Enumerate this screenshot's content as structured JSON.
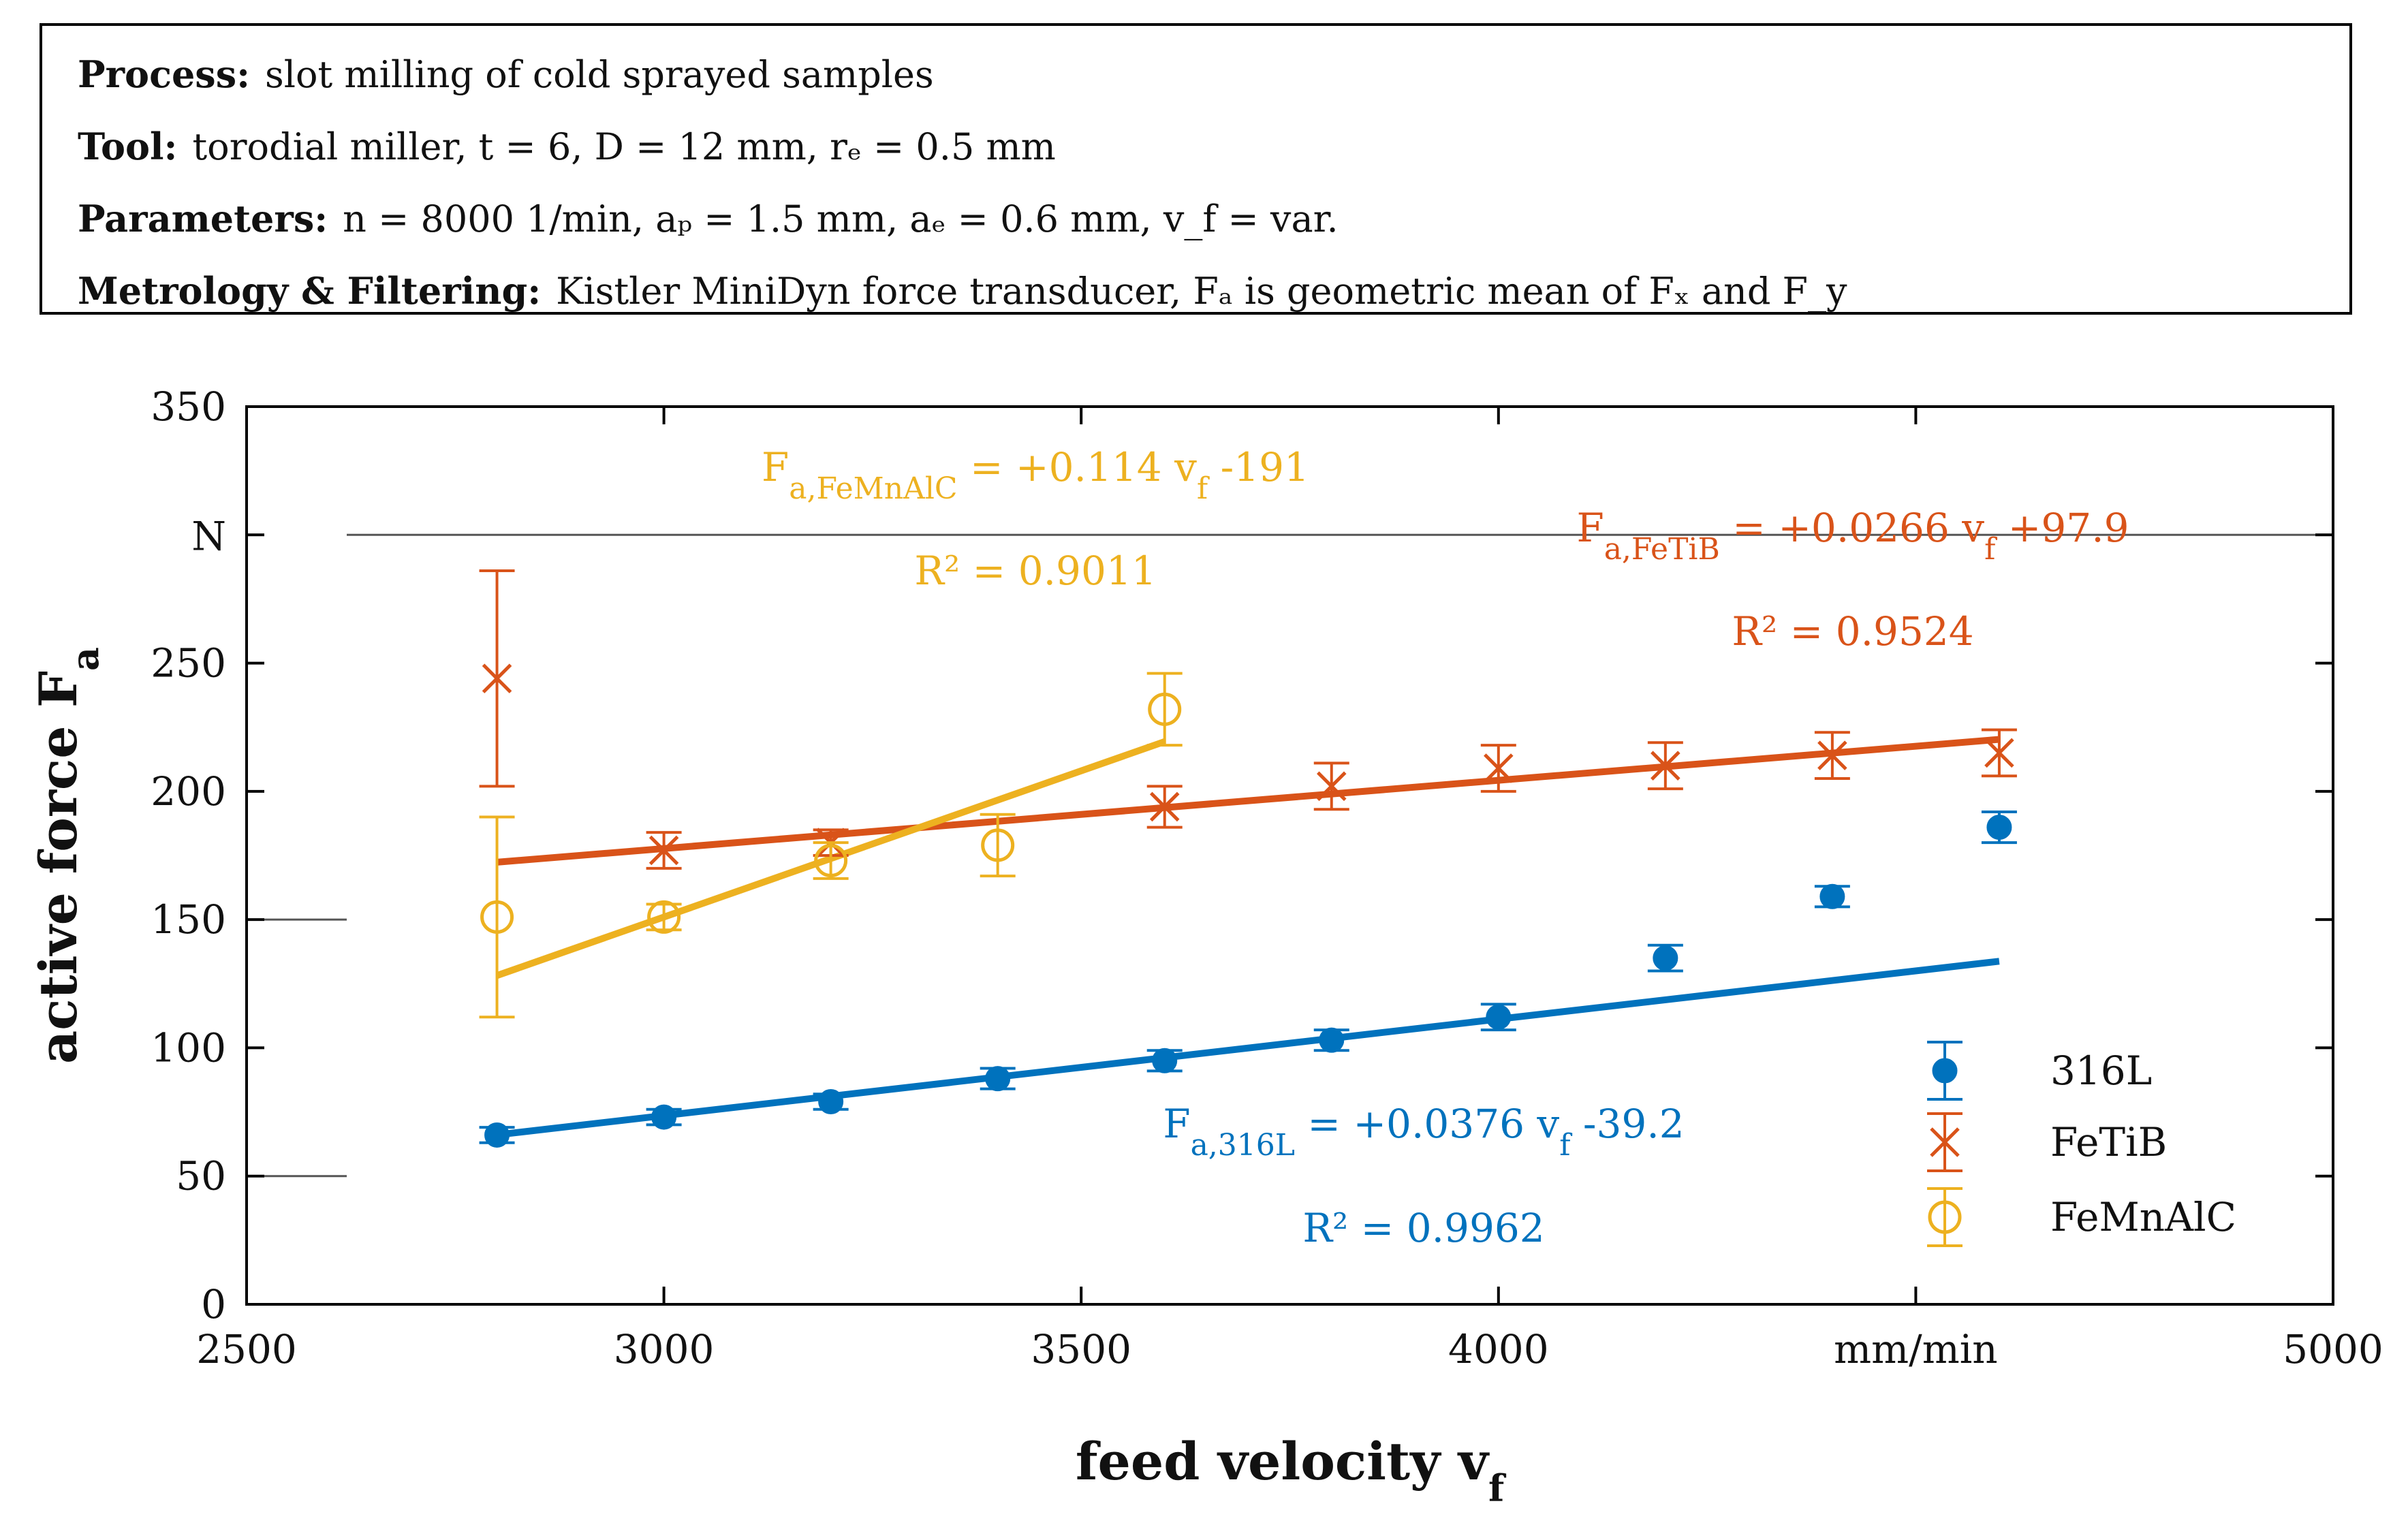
{
  "info_box": {
    "lines": [
      {
        "label": "Process:",
        "text": "slot milling of cold sprayed samples"
      },
      {
        "label": "Tool:",
        "text": "torodial miller, t = 6, D = 12 mm, rₑ = 0.5 mm"
      },
      {
        "label": "Parameters:",
        "text": "n = 8000 1/min, aₚ = 1.5 mm, aₑ = 0.6 mm, v_f = var."
      },
      {
        "label": "Metrology & Filtering:",
        "text": "Kistler MiniDyn force transducer, Fₐ is geometric mean of Fₓ and F_y"
      }
    ]
  },
  "colors": {
    "s316L": "#0072bd",
    "FeTiB": "#d95319",
    "FeMnAlC": "#edb120",
    "axis": "#000000",
    "grid": "#000000"
  },
  "chart_data": {
    "type": "scatter",
    "xlabel": "feed velocity v_f",
    "ylabel": "active force F_a",
    "x_unit": "mm/min",
    "y_unit": "N",
    "xlim": [
      2500,
      5000
    ],
    "ylim": [
      0,
      350
    ],
    "x_ticks": [
      2500,
      3000,
      3500,
      4000,
      5000
    ],
    "y_ticks": [
      0,
      50,
      100,
      150,
      200,
      250,
      350
    ],
    "legend_position": "bottom-right",
    "series": [
      {
        "name": "316L",
        "marker": "filled-circle",
        "color": "#0072bd",
        "x": [
          2800,
          3000,
          3200,
          3400,
          3600,
          3800,
          4000,
          4200,
          4400,
          4600
        ],
        "y": [
          66,
          73,
          79,
          88,
          95,
          103,
          112,
          135,
          159,
          186
        ],
        "err": [
          3,
          3,
          3,
          4,
          4,
          4,
          5,
          5,
          4,
          6
        ],
        "fit": {
          "x": [
            2800,
            4600
          ],
          "slope": 0.0376,
          "intercept": -39.2
        },
        "equation": "F_a,316L = +0.0376 v_f -39.2",
        "r2": "R² = 0.9962"
      },
      {
        "name": "FeTiB",
        "marker": "x",
        "color": "#d95319",
        "x": [
          2800,
          3000,
          3200,
          3600,
          3800,
          4000,
          4200,
          4400,
          4600
        ],
        "y": [
          244,
          177,
          180,
          194,
          202,
          209,
          210,
          214,
          215
        ],
        "err": [
          42,
          7,
          5,
          8,
          9,
          9,
          9,
          9,
          9
        ],
        "fit": {
          "x": [
            2800,
            4600
          ],
          "slope": 0.0266,
          "intercept": 97.9
        },
        "equation": "F_a,FeTiB = +0.0266 v_f +97.9",
        "r2": "R² = 0.9524"
      },
      {
        "name": "FeMnAlC",
        "marker": "open-circle",
        "color": "#edb120",
        "x": [
          2800,
          3000,
          3200,
          3400,
          3600
        ],
        "y": [
          151,
          151,
          173,
          179,
          232
        ],
        "err": [
          39,
          5,
          7,
          12,
          14
        ],
        "fit": {
          "x": [
            2800,
            3600
          ],
          "slope": 0.114,
          "intercept": -191
        },
        "equation": "F_a,FeMnAlC = +0.114 v_f -191",
        "r2": "R² = 0.9011"
      }
    ]
  }
}
